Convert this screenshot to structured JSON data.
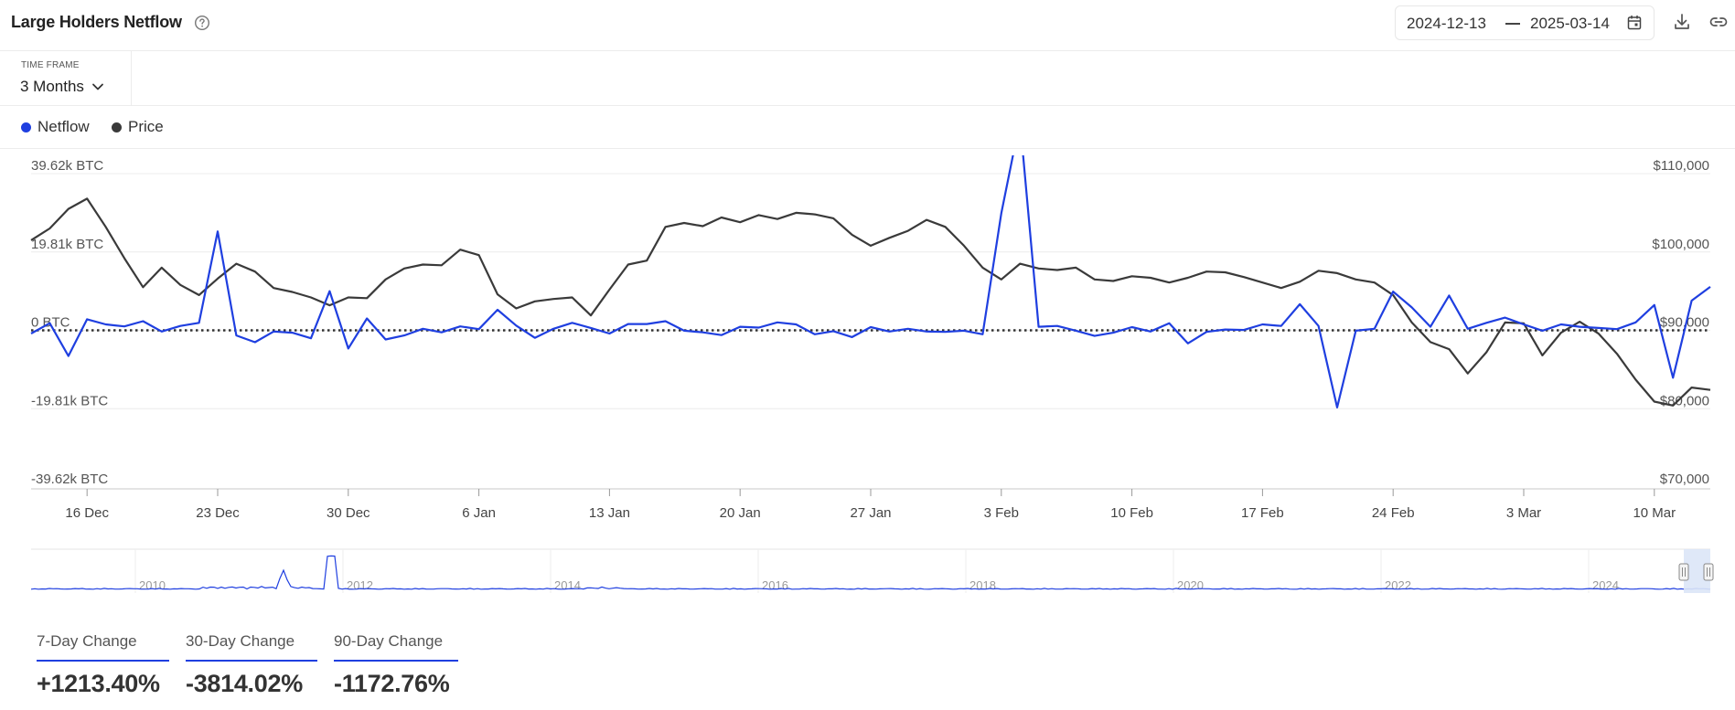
{
  "header": {
    "title": "Large Holders Netflow",
    "date_start": "2024-12-13",
    "date_end": "2025-03-14"
  },
  "timeframe": {
    "label": "TIME FRAME",
    "value": "3 Months"
  },
  "legend": [
    {
      "label": "Netflow",
      "color": "#1f3fe0"
    },
    {
      "label": "Price",
      "color": "#3a3a3a"
    }
  ],
  "chart_data": {
    "type": "line",
    "x": [
      "2024-12-13",
      "2024-12-14",
      "2024-12-15",
      "2024-12-16",
      "2024-12-17",
      "2024-12-18",
      "2024-12-19",
      "2024-12-20",
      "2024-12-21",
      "2024-12-22",
      "2024-12-23",
      "2024-12-24",
      "2024-12-25",
      "2024-12-26",
      "2024-12-27",
      "2024-12-28",
      "2024-12-29",
      "2024-12-30",
      "2024-12-31",
      "2025-01-01",
      "2025-01-02",
      "2025-01-03",
      "2025-01-04",
      "2025-01-05",
      "2025-01-06",
      "2025-01-07",
      "2025-01-08",
      "2025-01-09",
      "2025-01-10",
      "2025-01-11",
      "2025-01-12",
      "2025-01-13",
      "2025-01-14",
      "2025-01-15",
      "2025-01-16",
      "2025-01-17",
      "2025-01-18",
      "2025-01-19",
      "2025-01-20",
      "2025-01-21",
      "2025-01-22",
      "2025-01-23",
      "2025-01-24",
      "2025-01-25",
      "2025-01-26",
      "2025-01-27",
      "2025-01-28",
      "2025-01-29",
      "2025-01-30",
      "2025-01-31",
      "2025-02-01",
      "2025-02-02",
      "2025-02-03",
      "2025-02-04",
      "2025-02-05",
      "2025-02-06",
      "2025-02-07",
      "2025-02-08",
      "2025-02-09",
      "2025-02-10",
      "2025-02-11",
      "2025-02-12",
      "2025-02-13",
      "2025-02-14",
      "2025-02-15",
      "2025-02-16",
      "2025-02-17",
      "2025-02-18",
      "2025-02-19",
      "2025-02-20",
      "2025-02-21",
      "2025-02-22",
      "2025-02-23",
      "2025-02-24",
      "2025-02-25",
      "2025-02-26",
      "2025-02-27",
      "2025-02-28",
      "2025-03-01",
      "2025-03-02",
      "2025-03-03",
      "2025-03-04",
      "2025-03-05",
      "2025-03-06",
      "2025-03-07",
      "2025-03-08",
      "2025-03-09",
      "2025-03-10",
      "2025-03-11",
      "2025-03-12",
      "2025-03-13"
    ],
    "series": [
      {
        "name": "Netflow",
        "axis": "left",
        "color": "#1f3fe0",
        "values": [
          -800,
          1800,
          -6500,
          2800,
          1500,
          1000,
          2300,
          -300,
          1100,
          1900,
          25000,
          -1300,
          -3000,
          -300,
          -600,
          -2000,
          9900,
          -4600,
          3000,
          -2300,
          -1300,
          400,
          -500,
          1000,
          300,
          5200,
          1200,
          -1900,
          400,
          1900,
          600,
          -800,
          1600,
          1600,
          2300,
          -100,
          -500,
          -1200,
          900,
          700,
          2000,
          1500,
          -1000,
          -200,
          -1700,
          800,
          -300,
          400,
          -300,
          -400,
          -100,
          -1000,
          29600,
          53000,
          900,
          1100,
          -100,
          -1400,
          -600,
          800,
          -300,
          1800,
          -3300,
          -400,
          200,
          100,
          1500,
          1100,
          6600,
          1100,
          -19500,
          -100,
          400,
          9800,
          5800,
          900,
          8800,
          400,
          1900,
          3200,
          1500,
          -100,
          1500,
          900,
          600,
          300,
          2000,
          6400,
          -12000,
          7500,
          11000
        ]
      },
      {
        "name": "Price",
        "axis": "right",
        "color": "#3a3a3a",
        "values": [
          101500,
          103000,
          105500,
          106800,
          103200,
          99200,
          95500,
          98000,
          95800,
          94500,
          96600,
          98500,
          97500,
          95400,
          94900,
          94200,
          93200,
          94200,
          94100,
          96500,
          97900,
          98400,
          98300,
          100300,
          99600,
          94600,
          92800,
          93700,
          94000,
          94200,
          91900,
          95200,
          98400,
          98900,
          103200,
          103700,
          103300,
          104400,
          103800,
          104700,
          104200,
          105000,
          104800,
          104300,
          102200,
          100800,
          101800,
          102700,
          104100,
          103200,
          100800,
          98000,
          96500,
          98500,
          97900,
          97700,
          98000,
          96500,
          96300,
          96900,
          96700,
          96100,
          96700,
          97500,
          97400,
          96800,
          96100,
          95400,
          96200,
          97600,
          97300,
          96500,
          96100,
          94500,
          91000,
          88500,
          87600,
          84500,
          87200,
          91000,
          90900,
          86800,
          89700,
          91100,
          89600,
          87000,
          83700,
          80900,
          80400,
          82700,
          82400
        ]
      }
    ],
    "y_left": {
      "ticks": [
        "39.62k BTC",
        "19.81k BTC",
        "0 BTC",
        "-19.81k BTC",
        "-39.62k BTC"
      ],
      "range": [
        -39620,
        39620
      ]
    },
    "y_right": {
      "ticks": [
        "$110,000",
        "$100,000",
        "$90,000",
        "$80,000",
        "$70,000"
      ],
      "range": [
        70000,
        110000
      ]
    },
    "x_ticks": [
      {
        "date": "2024-12-16",
        "label": "16 Dec"
      },
      {
        "date": "2024-12-23",
        "label": "23 Dec"
      },
      {
        "date": "2024-12-30",
        "label": "30 Dec"
      },
      {
        "date": "2025-01-06",
        "label": "6 Jan"
      },
      {
        "date": "2025-01-13",
        "label": "13 Jan"
      },
      {
        "date": "2025-01-20",
        "label": "20 Jan"
      },
      {
        "date": "2025-01-27",
        "label": "27 Jan"
      },
      {
        "date": "2025-02-03",
        "label": "3 Feb"
      },
      {
        "date": "2025-02-10",
        "label": "10 Feb"
      },
      {
        "date": "2025-02-17",
        "label": "17 Feb"
      },
      {
        "date": "2025-02-24",
        "label": "24 Feb"
      },
      {
        "date": "2025-03-03",
        "label": "3 Mar"
      },
      {
        "date": "2025-03-10",
        "label": "10 Mar"
      }
    ],
    "zero_line": "dotted",
    "grid": true,
    "navigator": {
      "years": [
        "2010",
        "2012",
        "2014",
        "2016",
        "2018",
        "2020",
        "2022",
        "2024"
      ],
      "color": "#1f3fe0",
      "selection_color": "#dbe6f7"
    }
  },
  "stats": [
    {
      "label": "7-Day Change",
      "value": "+1213.40%"
    },
    {
      "label": "30-Day Change",
      "value": "-3814.02%"
    },
    {
      "label": "90-Day Change",
      "value": "-1172.76%"
    }
  ]
}
